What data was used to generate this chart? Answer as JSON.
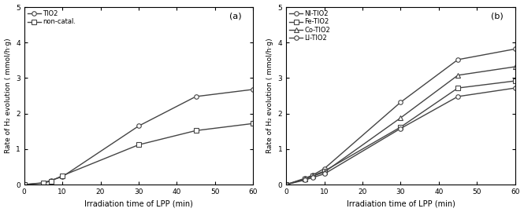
{
  "panel_a": {
    "label": "(a)",
    "x": [
      0,
      5,
      7,
      10,
      30,
      45,
      60
    ],
    "series": [
      {
        "y": [
          0,
          0.05,
          0.12,
          0.22,
          1.65,
          2.48,
          2.68
        ],
        "marker": "o",
        "label": "TIO2"
      },
      {
        "y": [
          0,
          0.04,
          0.1,
          0.25,
          1.12,
          1.52,
          1.72
        ],
        "marker": "s",
        "label": "non-catal."
      }
    ],
    "ylim": [
      0,
      5
    ],
    "yticks": [
      0,
      1,
      2,
      3,
      4,
      5
    ],
    "xlim": [
      0,
      60
    ],
    "xticks": [
      0,
      10,
      20,
      30,
      40,
      50,
      60
    ],
    "xlabel": "Irradiation time of LPP (min)",
    "ylabel": "Rate of H₂ evolution ( mmol/h·g)"
  },
  "panel_b": {
    "label": "(b)",
    "x": [
      0,
      5,
      7,
      10,
      30,
      45,
      60
    ],
    "series": [
      {
        "y": [
          0,
          0.18,
          0.27,
          0.45,
          2.32,
          3.52,
          3.82
        ],
        "marker": "o",
        "label": "NI-TIO2"
      },
      {
        "y": [
          0,
          0.16,
          0.25,
          0.38,
          1.62,
          2.72,
          2.92
        ],
        "marker": "s",
        "label": "Fe-TIO2"
      },
      {
        "y": [
          0,
          0.15,
          0.24,
          0.35,
          1.88,
          3.08,
          3.32
        ],
        "marker": "^",
        "label": "Co-TIO2"
      },
      {
        "y": [
          0,
          0.13,
          0.2,
          0.3,
          1.58,
          2.48,
          2.72
        ],
        "marker": "o",
        "label": "LI-TIO2"
      }
    ],
    "ylim": [
      0,
      5
    ],
    "yticks": [
      0,
      1,
      2,
      3,
      4,
      5
    ],
    "xlim": [
      0,
      60
    ],
    "xticks": [
      0,
      10,
      20,
      30,
      40,
      50,
      60
    ],
    "xlabel": "Irradiation time of LPP (min)",
    "ylabel": "Rate of H₂ evolution ( mmol/h·g)"
  },
  "line_color": "#444444",
  "marker_facecolor": "white",
  "marker_edgecolor": "#444444",
  "marker_size": 4,
  "linewidth": 1.0,
  "ylabel_fontsize": 6.5,
  "xlabel_fontsize": 7,
  "legend_fontsize": 6,
  "tick_fontsize": 6.5,
  "panel_label_fontsize": 8
}
